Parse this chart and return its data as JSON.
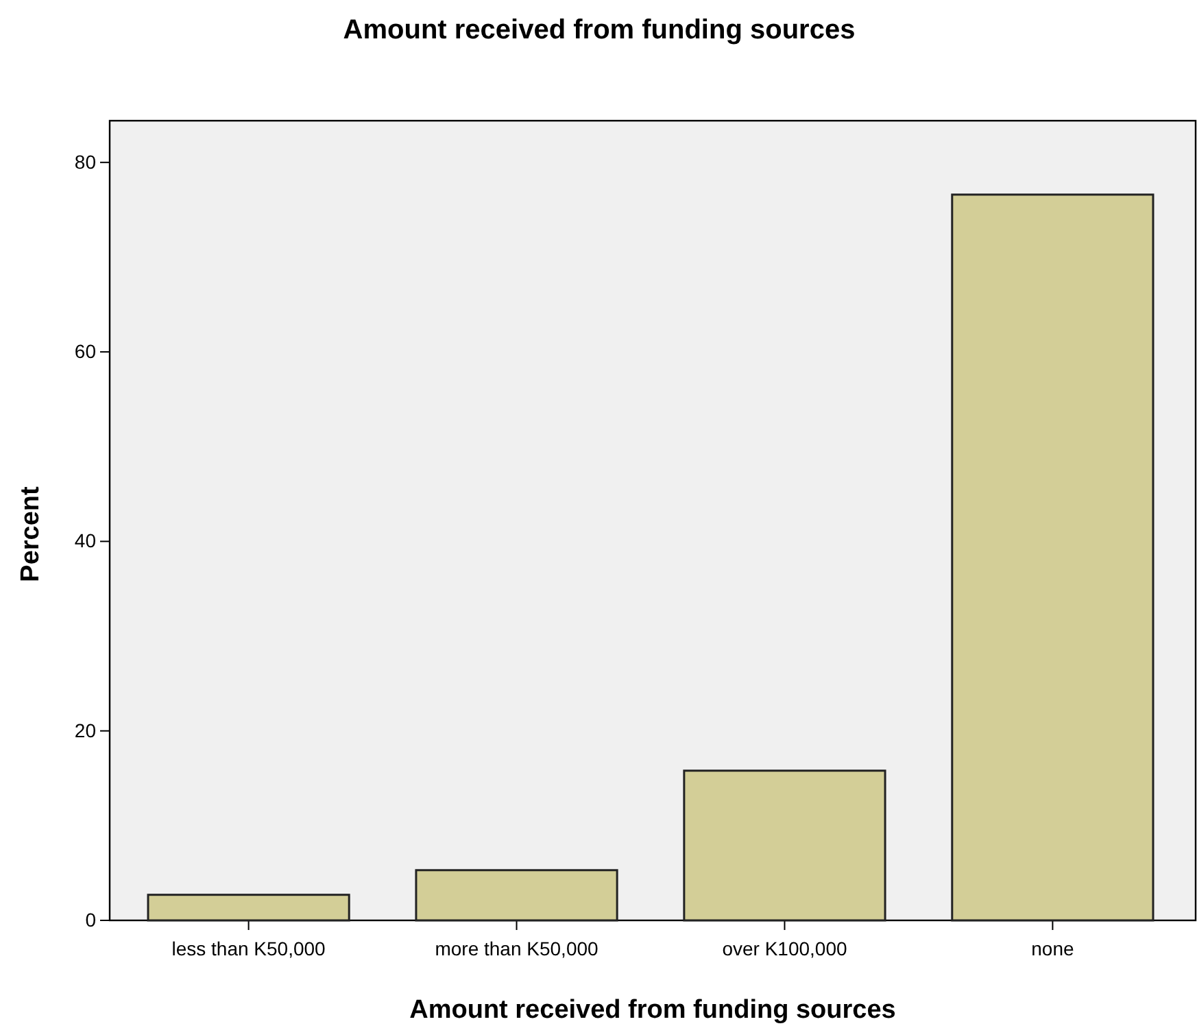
{
  "chart_data": {
    "type": "bar",
    "title": "Amount received from funding sources",
    "xlabel": "Amount received from funding sources",
    "ylabel": "Percent",
    "categories": [
      "less than K50,000",
      "more than K50,000",
      "over K100,000",
      "none"
    ],
    "values": [
      2.7,
      5.3,
      15.8,
      76.6
    ],
    "color": "#d3ce97",
    "ylim": [
      0,
      84.4
    ],
    "yticks": [
      0,
      20,
      40,
      60,
      80
    ],
    "grid": false
  }
}
